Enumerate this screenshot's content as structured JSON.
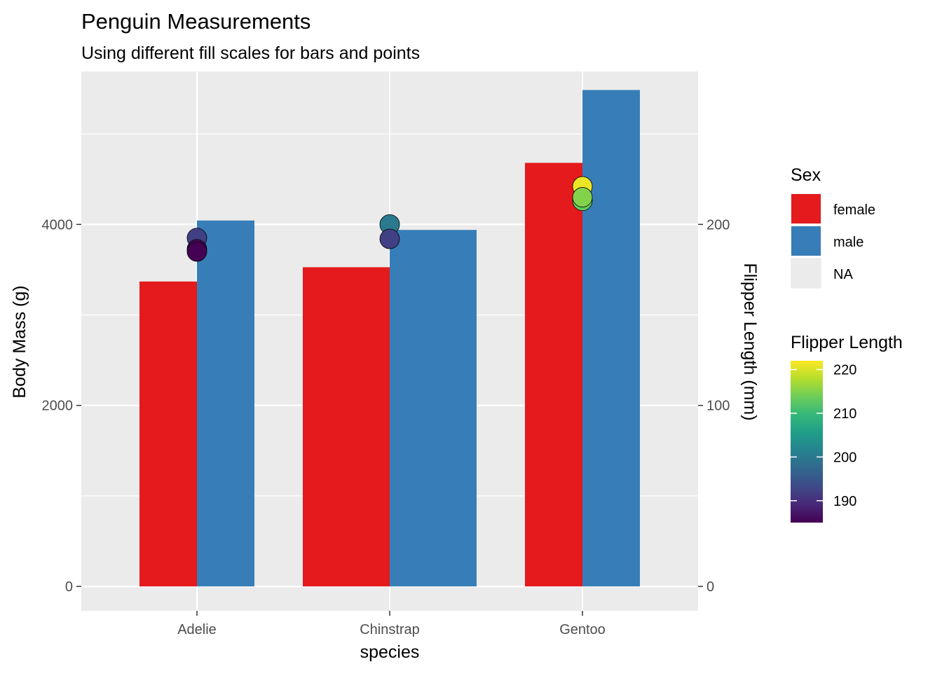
{
  "chart_data": {
    "type": "bar",
    "title": "Penguin Measurements",
    "subtitle": "Using different fill scales for bars and points",
    "xlabel": "species",
    "ylabel": "Body Mass (g)",
    "y2label": "Flipper Length (mm)",
    "categories": [
      "Adelie",
      "Chinstrap",
      "Gentoo"
    ],
    "ylim": [
      -270,
      5690
    ],
    "y2lim": [
      -13.5,
      284.5
    ],
    "yticks": [
      0,
      2000,
      4000
    ],
    "y2ticks": [
      0,
      100,
      200
    ],
    "grid": true,
    "series": [
      {
        "name": "female",
        "color": "#E41A1C",
        "values": [
          3369,
          3527,
          4680
        ]
      },
      {
        "name": "male",
        "color": "#377EB8",
        "values": [
          4043,
          3939,
          5485
        ]
      }
    ],
    "points": [
      {
        "category": "Adelie",
        "flipper_length": 192,
        "body_mass": 3850
      },
      {
        "category": "Adelie",
        "flipper_length": 186,
        "body_mass": 3725
      },
      {
        "category": "Adelie",
        "flipper_length": 185,
        "body_mass": 3700
      },
      {
        "category": "Chinstrap",
        "flipper_length": 200,
        "body_mass": 4000
      },
      {
        "category": "Chinstrap",
        "flipper_length": 192,
        "body_mass": 3840
      },
      {
        "category": "Gentoo",
        "flipper_length": 221,
        "body_mass": 4420
      },
      {
        "category": "Gentoo",
        "flipper_length": 213,
        "body_mass": 4260
      },
      {
        "category": "Gentoo",
        "flipper_length": 215,
        "body_mass": 4300
      }
    ],
    "legends": [
      {
        "title": "Sex",
        "items": [
          {
            "label": "female",
            "color": "#E41A1C"
          },
          {
            "label": "male",
            "color": "#377EB8"
          },
          {
            "label": "NA",
            "color": "#EBEBEB"
          }
        ]
      },
      {
        "title": "Flipper Length",
        "type": "colorbar",
        "range": [
          185,
          222
        ],
        "ticks": [
          190,
          200,
          210,
          220
        ],
        "colors": [
          "#440154",
          "#482878",
          "#3E4A89",
          "#31688E",
          "#26828E",
          "#1F9E89",
          "#35B779",
          "#6DCD59",
          "#B4DE2C",
          "#FDE725"
        ]
      }
    ]
  }
}
